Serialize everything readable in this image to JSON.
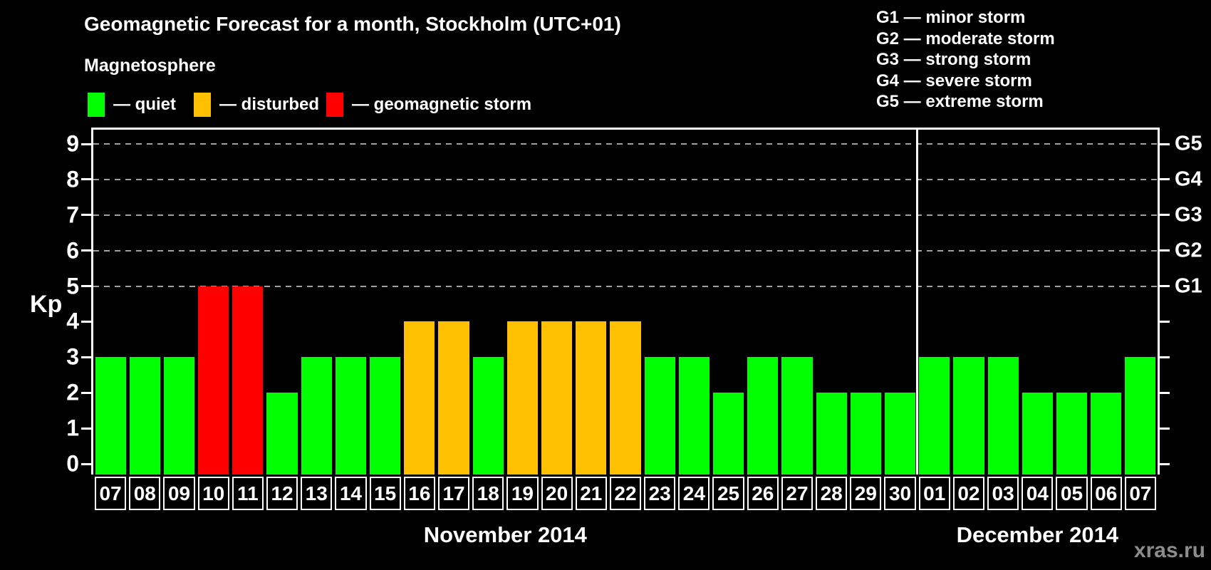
{
  "title": "Geomagnetic Forecast for a month, Stockholm (UTC+01)",
  "subtitle": "Magnetosphere",
  "watermark": "xras.ru",
  "colors": {
    "quiet": "#00ff00",
    "disturbed": "#ffc000",
    "storm": "#ff0000",
    "grid": "#a0a0a0",
    "axis": "#ffffff",
    "watermark": "#8c8c8c",
    "background": "#000000"
  },
  "status_legend": {
    "items": [
      {
        "label": "— quiet",
        "status": "quiet",
        "color": "#00ff00"
      },
      {
        "label": "— disturbed",
        "status": "disturbed",
        "color": "#ffc000"
      },
      {
        "label": "— geomagnetic storm",
        "status": "storm",
        "color": "#ff0000"
      }
    ]
  },
  "g_legend": {
    "items": [
      {
        "label": "G1 — minor storm"
      },
      {
        "label": "G2 — moderate storm"
      },
      {
        "label": "G3 — strong storm"
      },
      {
        "label": "G4 — severe storm"
      },
      {
        "label": "G5 — extreme storm"
      }
    ]
  },
  "chart_data": {
    "type": "bar",
    "title": "Geomagnetic Forecast for a month, Stockholm (UTC+01)",
    "ylabel": "Kp",
    "ylim": [
      0,
      9.4
    ],
    "yticks": [
      0,
      1,
      2,
      3,
      4,
      5,
      6,
      7,
      8,
      9
    ],
    "grid": "dashed horizontal lines at Kp 5-9 only",
    "legend_position": "top-left",
    "right_axis": [
      {
        "label": "G1",
        "kp": 5
      },
      {
        "label": "G2",
        "kp": 6
      },
      {
        "label": "G3",
        "kp": 7
      },
      {
        "label": "G4",
        "kp": 8
      },
      {
        "label": "G5",
        "kp": 9
      }
    ],
    "months": [
      {
        "label": "November 2014",
        "days": [
          {
            "day": "07",
            "kp": 3,
            "status": "quiet"
          },
          {
            "day": "08",
            "kp": 3,
            "status": "quiet"
          },
          {
            "day": "09",
            "kp": 3,
            "status": "quiet"
          },
          {
            "day": "10",
            "kp": 5,
            "status": "storm"
          },
          {
            "day": "11",
            "kp": 5,
            "status": "storm"
          },
          {
            "day": "12",
            "kp": 2,
            "status": "quiet"
          },
          {
            "day": "13",
            "kp": 3,
            "status": "quiet"
          },
          {
            "day": "14",
            "kp": 3,
            "status": "quiet"
          },
          {
            "day": "15",
            "kp": 3,
            "status": "quiet"
          },
          {
            "day": "16",
            "kp": 4,
            "status": "disturbed"
          },
          {
            "day": "17",
            "kp": 4,
            "status": "disturbed"
          },
          {
            "day": "18",
            "kp": 3,
            "status": "quiet"
          },
          {
            "day": "19",
            "kp": 4,
            "status": "disturbed"
          },
          {
            "day": "20",
            "kp": 4,
            "status": "disturbed"
          },
          {
            "day": "21",
            "kp": 4,
            "status": "disturbed"
          },
          {
            "day": "22",
            "kp": 4,
            "status": "disturbed"
          },
          {
            "day": "23",
            "kp": 3,
            "status": "quiet"
          },
          {
            "day": "24",
            "kp": 3,
            "status": "quiet"
          },
          {
            "day": "25",
            "kp": 2,
            "status": "quiet"
          },
          {
            "day": "26",
            "kp": 3,
            "status": "quiet"
          },
          {
            "day": "27",
            "kp": 3,
            "status": "quiet"
          },
          {
            "day": "28",
            "kp": 2,
            "status": "quiet"
          },
          {
            "day": "29",
            "kp": 2,
            "status": "quiet"
          },
          {
            "day": "30",
            "kp": 2,
            "status": "quiet"
          }
        ]
      },
      {
        "label": "December 2014",
        "days": [
          {
            "day": "01",
            "kp": 3,
            "status": "quiet"
          },
          {
            "day": "02",
            "kp": 3,
            "status": "quiet"
          },
          {
            "day": "03",
            "kp": 3,
            "status": "quiet"
          },
          {
            "day": "04",
            "kp": 2,
            "status": "quiet"
          },
          {
            "day": "05",
            "kp": 2,
            "status": "quiet"
          },
          {
            "day": "06",
            "kp": 2,
            "status": "quiet"
          },
          {
            "day": "07",
            "kp": 3,
            "status": "quiet"
          }
        ]
      }
    ]
  }
}
